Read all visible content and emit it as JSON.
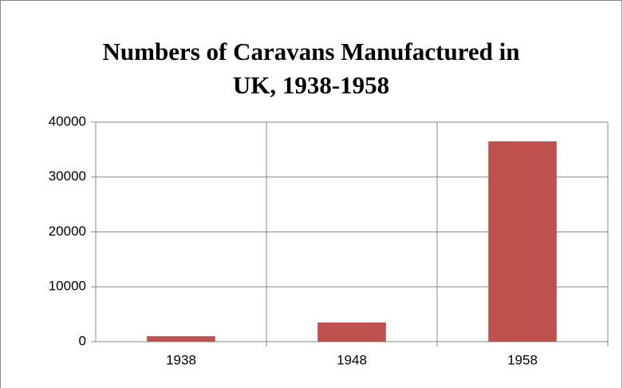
{
  "chart_data": {
    "type": "bar",
    "title": "Numbers of Caravans Manufactured in UK, 1938-1958",
    "categories": [
      "1938",
      "1948",
      "1958"
    ],
    "values": [
      1000,
      3500,
      36500
    ],
    "color": "#c0504d",
    "ylim": [
      0,
      40000
    ],
    "yticks": [
      0,
      10000,
      20000,
      30000,
      40000
    ],
    "grid": true
  }
}
